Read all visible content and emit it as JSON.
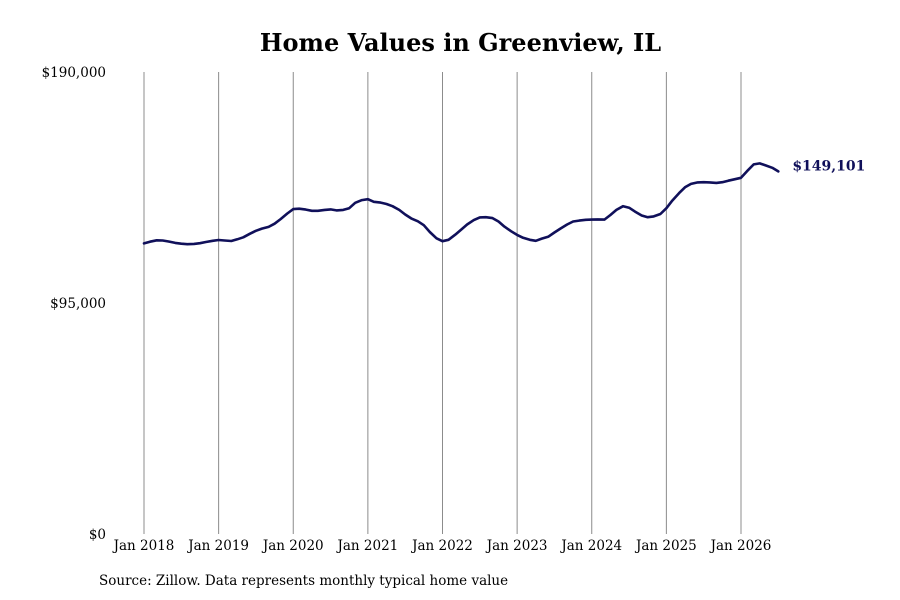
{
  "chart_data": {
    "type": "line",
    "title": "Home Values in Greenview, IL",
    "xlabel": "",
    "ylabel": "",
    "ylim": [
      0,
      190000
    ],
    "y_ticks": [
      {
        "value": 0,
        "label": "$0"
      },
      {
        "value": 95000,
        "label": "$95,000"
      },
      {
        "value": 190000,
        "label": "$190,000"
      }
    ],
    "x_ticks": [
      {
        "value": 2018.0,
        "label": "Jan 2018"
      },
      {
        "value": 2019.0,
        "label": "Jan 2019"
      },
      {
        "value": 2020.0,
        "label": "Jan 2020"
      },
      {
        "value": 2021.0,
        "label": "Jan 2021"
      },
      {
        "value": 2022.0,
        "label": "Jan 2022"
      },
      {
        "value": 2023.0,
        "label": "Jan 2023"
      },
      {
        "value": 2024.0,
        "label": "Jan 2024"
      },
      {
        "value": 2025.0,
        "label": "Jan 2025"
      },
      {
        "value": 2026.0,
        "label": "Jan 2026"
      }
    ],
    "grid": "vertical",
    "line_color": "#10105a",
    "end_label": "$149,101",
    "series": [
      {
        "x": [
          2018.0,
          2018.08,
          2018.17,
          2018.25,
          2018.33,
          2018.42,
          2018.5,
          2018.58,
          2018.67,
          2018.75,
          2018.83,
          2018.92,
          2019.0,
          2019.08,
          2019.17,
          2019.25,
          2019.33,
          2019.42,
          2019.5,
          2019.58,
          2019.67,
          2019.75,
          2019.83,
          2019.92,
          2020.0,
          2020.08,
          2020.17,
          2020.25,
          2020.33,
          2020.42,
          2020.5,
          2020.58,
          2020.67,
          2020.75,
          2020.83,
          2020.92,
          2021.0,
          2021.08,
          2021.17,
          2021.25,
          2021.33,
          2021.42,
          2021.5,
          2021.58,
          2021.67,
          2021.75,
          2021.83,
          2021.92,
          2022.0,
          2022.08,
          2022.17,
          2022.25,
          2022.33,
          2022.42,
          2022.5,
          2022.58,
          2022.67,
          2022.75,
          2022.83,
          2022.92,
          2023.0,
          2023.08,
          2023.17,
          2023.25,
          2023.33,
          2023.42,
          2023.5,
          2023.58,
          2023.67,
          2023.75,
          2023.83,
          2023.92,
          2024.0,
          2024.08,
          2024.17,
          2024.25,
          2024.33,
          2024.42,
          2024.5,
          2024.58,
          2024.67,
          2024.75,
          2024.83,
          2024.92,
          2025.0,
          2025.08,
          2025.17,
          2025.25,
          2025.33,
          2025.42,
          2025.5,
          2025.58,
          2025.67,
          2025.75,
          2025.83,
          2025.92,
          2026.0,
          2026.08,
          2026.17,
          2026.25,
          2026.33,
          2026.42,
          2026.5
        ],
        "values": [
          119500,
          120200,
          120800,
          120700,
          120300,
          119700,
          119400,
          119200,
          119300,
          119600,
          120100,
          120600,
          120900,
          120700,
          120500,
          121200,
          122000,
          123500,
          124700,
          125600,
          126300,
          127600,
          129500,
          131800,
          133600,
          133800,
          133400,
          132900,
          132900,
          133300,
          133500,
          133100,
          133300,
          134000,
          136200,
          137300,
          137700,
          136600,
          136300,
          135700,
          134800,
          133300,
          131400,
          129800,
          128600,
          127000,
          124200,
          121600,
          120400,
          121000,
          123100,
          125200,
          127300,
          129100,
          130200,
          130300,
          129900,
          128500,
          126400,
          124500,
          123000,
          121800,
          121000,
          120600,
          121500,
          122300,
          124000,
          125600,
          127300,
          128500,
          128900,
          129200,
          129300,
          129400,
          129300,
          131200,
          133300,
          134800,
          134200,
          132600,
          131000,
          130300,
          130600,
          131600,
          134000,
          137100,
          140200,
          142600,
          144000,
          144600,
          144700,
          144600,
          144400,
          144700,
          145300,
          145900,
          146500,
          149200,
          152000,
          152400,
          151600,
          150600,
          149101
        ]
      }
    ]
  },
  "source_note": "Source: Zillow. Data represents monthly typical home value"
}
